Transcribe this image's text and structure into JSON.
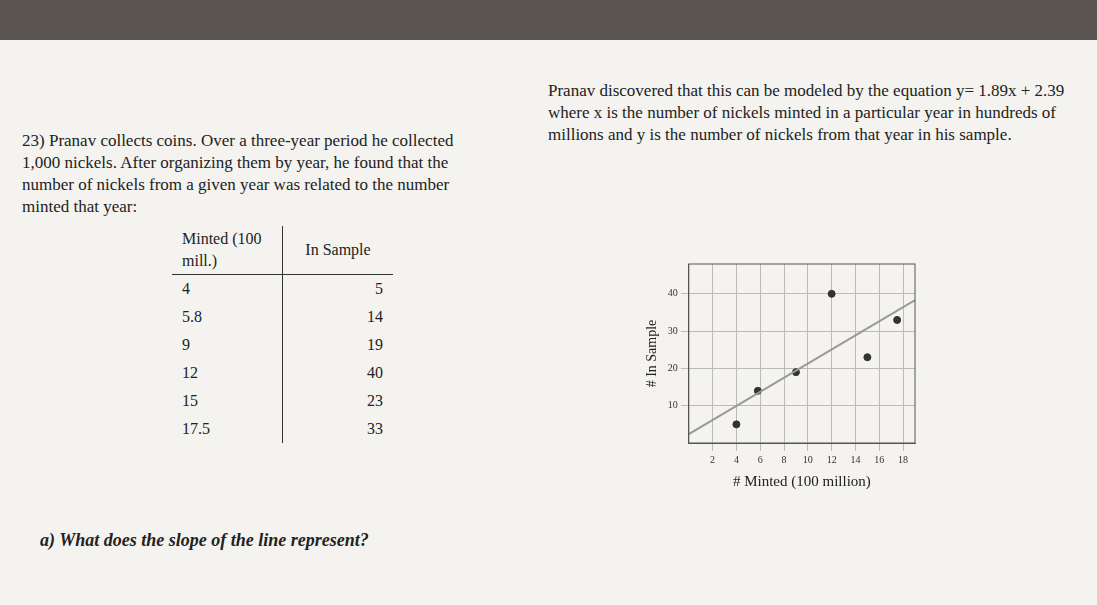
{
  "document": {
    "problem": {
      "number": "23)",
      "intro": "Pranav collects coins. Over a three-year period he collected 1,000 nickels. After organizing them by year, he found that the number of nickels from a given year was related to the number minted that year:",
      "table": {
        "header": [
          "Minted (100 mill.)",
          "In Sample"
        ],
        "rows": [
          [
            4,
            5
          ],
          [
            5.8,
            14
          ],
          [
            9,
            19
          ],
          [
            12,
            40
          ],
          [
            15,
            23
          ],
          [
            17.5,
            33
          ]
        ]
      },
      "model_text": "Pranav discovered that this can be modeled by the equation y= 1.89x + 2.39 where x is the number of nickels minted in a particular year in hundreds of millions and y is the number of nickels from that year in his sample.",
      "question": "a) What does the slope of the line represent?"
    }
  },
  "chart_data": {
    "type": "scatter",
    "x_label": "# Minted (100 million)",
    "y_label": "# In Sample",
    "x": [
      4,
      5.8,
      9,
      12,
      15,
      17.5
    ],
    "values": [
      5,
      14,
      19,
      40,
      23,
      33
    ],
    "color": "#333333",
    "line": {
      "slope": 1.89,
      "intercept": 2.39,
      "color": "#999999"
    },
    "xlim": [
      0,
      19
    ],
    "xticks": [
      2,
      4,
      6,
      8,
      10,
      12,
      14,
      16,
      18
    ],
    "ylim": [
      0,
      48
    ],
    "yticks": [
      10,
      20,
      30,
      40
    ],
    "grid": true
  }
}
